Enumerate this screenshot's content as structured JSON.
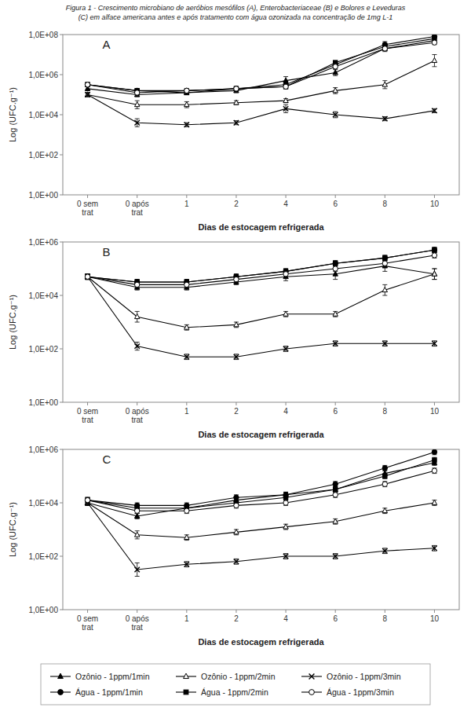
{
  "chart_data": [
    {
      "type": "line",
      "title": "Figura 1 - Crescimento microbiano de aeróbios mesófilos (A), Enterobacteriaceae (B) e Bolores e Leveduras",
      "subtitle": "(C) em alface americana antes e após tratamento com água ozonizada na concentração de 1mg L-1",
      "annotations": [
        "A"
      ],
      "x_label": "Dias de estocagem refrigerada",
      "y_label": "Log (UFC.g⁻¹)",
      "categories": [
        "0 sem\ntrat",
        "0 após\ntrat",
        "1",
        "2",
        "4",
        "6",
        "8",
        "10"
      ],
      "ylim": [
        0,
        8
      ],
      "yticks": [
        {
          "value": 0,
          "label": "1,0E+00"
        },
        {
          "value": 2,
          "label": "1,0E+02"
        },
        {
          "value": 4,
          "label": "1,0E+04"
        },
        {
          "value": 6,
          "label": "1,0E+06"
        },
        {
          "value": 8,
          "label": "1,0E+08"
        }
      ],
      "grid": false,
      "legend": "bottom",
      "series": [
        {
          "name": "Ozônio - 1ppm/1min",
          "color": "#000000",
          "marker": "triangle",
          "values": [
            5.3,
            5.0,
            5.1,
            5.2,
            5.7,
            6.1,
            7.3,
            7.7
          ],
          "errors": [
            0.1,
            0.1,
            0.1,
            0.1,
            0.2,
            0.15,
            0.15,
            0.15
          ]
        },
        {
          "name": "Ozônio - 1ppm/2min",
          "color": "#000000",
          "marker": "triangle-open",
          "values": [
            5.0,
            4.5,
            4.5,
            4.6,
            4.7,
            5.2,
            5.5,
            6.7
          ],
          "errors": [
            0.1,
            0.2,
            0.15,
            0.1,
            0.1,
            0.15,
            0.2,
            0.3
          ]
        },
        {
          "name": "Ozônio - 1ppm/3min",
          "color": "#000000",
          "marker": "x",
          "values": [
            5.0,
            3.6,
            3.5,
            3.6,
            4.3,
            4.0,
            3.8,
            4.2
          ],
          "errors": [
            0.1,
            0.2,
            0.1,
            0.1,
            0.2,
            0.15,
            0.1,
            0.1
          ]
        },
        {
          "name": "Água - 1ppm/1min",
          "color": "#000000",
          "marker": "circle",
          "values": [
            5.5,
            5.2,
            5.2,
            5.3,
            5.5,
            6.5,
            7.5,
            7.9
          ],
          "errors": [
            0.1,
            0.1,
            0.1,
            0.1,
            0.1,
            0.1,
            0.15,
            0.1
          ]
        },
        {
          "name": "Água - 1ppm/2min",
          "color": "#000000",
          "marker": "square",
          "values": [
            5.5,
            5.2,
            5.1,
            5.3,
            5.4,
            6.6,
            7.4,
            7.8
          ],
          "errors": [
            0.1,
            0.1,
            0.1,
            0.1,
            0.1,
            0.1,
            0.15,
            0.1
          ]
        },
        {
          "name": "Água - 1ppm/3min",
          "color": "#000000",
          "marker": "circle-open",
          "values": [
            5.5,
            5.1,
            5.2,
            5.3,
            5.4,
            6.4,
            7.3,
            7.6
          ],
          "errors": [
            0.1,
            0.1,
            0.1,
            0.1,
            0.1,
            0.1,
            0.1,
            0.1
          ]
        }
      ]
    },
    {
      "type": "line",
      "annotations": [
        "B"
      ],
      "x_label": "Dias de estocagem refrigerada",
      "y_label": "Log (UFC.g⁻¹)",
      "categories": [
        "0 sem\ntrat",
        "0 após\ntrat",
        "1",
        "2",
        "4",
        "6",
        "8",
        "10"
      ],
      "ylim": [
        0,
        6
      ],
      "yticks": [
        {
          "value": 0,
          "label": "1,0E+00"
        },
        {
          "value": 2,
          "label": "1,0E+02"
        },
        {
          "value": 4,
          "label": "1,0E+04"
        },
        {
          "value": 6,
          "label": "1,0E+06"
        }
      ],
      "grid": false,
      "series": [
        {
          "name": "Ozônio - 1ppm/1min",
          "color": "#000000",
          "marker": "triangle",
          "values": [
            4.7,
            4.3,
            4.3,
            4.5,
            4.7,
            4.8,
            5.1,
            4.8
          ],
          "errors": [
            0.1,
            0.1,
            0.1,
            0.1,
            0.15,
            0.2,
            0.2,
            0.2
          ]
        },
        {
          "name": "Ozônio - 1ppm/2min",
          "color": "#000000",
          "marker": "triangle-open",
          "values": [
            4.7,
            3.2,
            2.8,
            2.9,
            3.3,
            3.3,
            4.2,
            4.8
          ],
          "errors": [
            0.1,
            0.2,
            0.1,
            0.1,
            0.1,
            0.1,
            0.2,
            0.2
          ]
        },
        {
          "name": "Ozônio - 1ppm/3min",
          "color": "#000000",
          "marker": "x",
          "values": [
            4.7,
            2.1,
            1.7,
            1.7,
            2.0,
            2.2,
            2.2,
            2.2
          ],
          "errors": [
            0.1,
            0.15,
            0.1,
            0.1,
            0.1,
            0.1,
            0.1,
            0.1
          ]
        },
        {
          "name": "Água - 1ppm/1min",
          "color": "#000000",
          "marker": "circle",
          "values": [
            4.7,
            4.5,
            4.5,
            4.7,
            4.9,
            5.2,
            5.4,
            5.7
          ],
          "errors": [
            0.1,
            0.1,
            0.1,
            0.1,
            0.1,
            0.1,
            0.1,
            0.1
          ]
        },
        {
          "name": "Água - 1ppm/2min",
          "color": "#000000",
          "marker": "square",
          "values": [
            4.7,
            4.5,
            4.5,
            4.7,
            4.9,
            5.2,
            5.4,
            5.7
          ],
          "errors": [
            0.1,
            0.1,
            0.1,
            0.1,
            0.1,
            0.1,
            0.1,
            0.1
          ]
        },
        {
          "name": "Água - 1ppm/3min",
          "color": "#000000",
          "marker": "circle-open",
          "values": [
            4.7,
            4.4,
            4.4,
            4.6,
            4.8,
            5.0,
            5.2,
            5.5
          ],
          "errors": [
            0.1,
            0.1,
            0.1,
            0.1,
            0.1,
            0.1,
            0.1,
            0.1
          ]
        }
      ]
    },
    {
      "type": "line",
      "annotations": [
        "C"
      ],
      "x_label": "Dias de estocagem refrigerada",
      "y_label": "Log (UFC.g⁻¹)",
      "categories": [
        "0 sem\ntrat",
        "0 após\ntrat",
        "1",
        "2",
        "4",
        "6",
        "8",
        "10"
      ],
      "ylim": [
        0,
        6
      ],
      "yticks": [
        {
          "value": 0,
          "label": "1,0E+00"
        },
        {
          "value": 2,
          "label": "1,0E+02"
        },
        {
          "value": 4,
          "label": "1,0E+04"
        },
        {
          "value": 6,
          "label": "1,0E+06"
        }
      ],
      "grid": false,
      "series": [
        {
          "name": "Ozônio - 1ppm/1min",
          "color": "#000000",
          "marker": "triangle",
          "values": [
            4.0,
            3.5,
            3.8,
            4.1,
            4.3,
            4.5,
            5.1,
            5.5
          ],
          "errors": [
            0.1,
            0.1,
            0.1,
            0.1,
            0.1,
            0.1,
            0.1,
            0.1
          ]
        },
        {
          "name": "Ozônio - 1ppm/2min",
          "color": "#000000",
          "marker": "triangle-open",
          "values": [
            4.0,
            2.8,
            2.7,
            2.9,
            3.1,
            3.3,
            3.7,
            4.0
          ],
          "errors": [
            0.1,
            0.15,
            0.1,
            0.1,
            0.1,
            0.1,
            0.1,
            0.1
          ]
        },
        {
          "name": "Ozônio - 1ppm/3min",
          "color": "#000000",
          "marker": "x",
          "values": [
            4.0,
            1.5,
            1.7,
            1.8,
            2.0,
            2.0,
            2.2,
            2.3
          ],
          "errors": [
            0.1,
            0.25,
            0.1,
            0.1,
            0.1,
            0.1,
            0.1,
            0.1
          ]
        },
        {
          "name": "Água - 1ppm/1min",
          "color": "#000000",
          "marker": "circle",
          "values": [
            4.1,
            3.9,
            3.9,
            4.2,
            4.3,
            4.7,
            5.3,
            5.9
          ],
          "errors": [
            0.1,
            0.1,
            0.1,
            0.1,
            0.1,
            0.1,
            0.1,
            0.1
          ]
        },
        {
          "name": "Água - 1ppm/2min",
          "color": "#000000",
          "marker": "square",
          "values": [
            4.1,
            3.8,
            3.8,
            4.0,
            4.2,
            4.5,
            5.0,
            5.6
          ],
          "errors": [
            0.1,
            0.1,
            0.1,
            0.1,
            0.1,
            0.1,
            0.1,
            0.1
          ]
        },
        {
          "name": "Água - 1ppm/3min",
          "color": "#000000",
          "marker": "circle-open",
          "values": [
            4.1,
            3.7,
            3.7,
            3.9,
            4.0,
            4.3,
            4.7,
            5.2
          ],
          "errors": [
            0.1,
            0.1,
            0.1,
            0.1,
            0.1,
            0.1,
            0.1,
            0.1
          ]
        }
      ]
    }
  ]
}
